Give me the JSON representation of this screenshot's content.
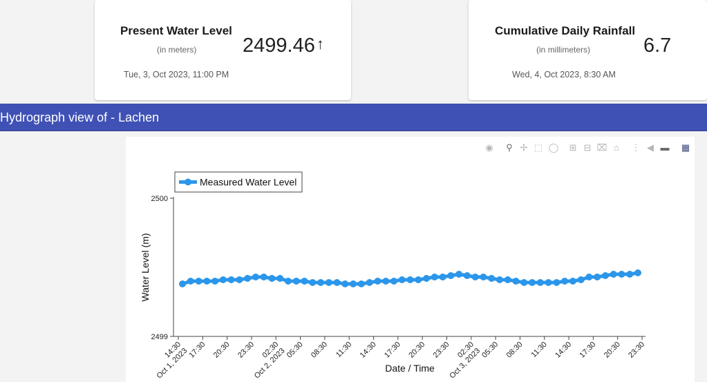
{
  "cards": {
    "water": {
      "title": "Present Water Level",
      "unit": "(in meters)",
      "value": "2499.46",
      "trend_icon": "arrow-up-icon",
      "timestamp": "Tue, 3, Oct 2023, 11:00 PM"
    },
    "rain": {
      "title": "Cumulative Daily Rainfall",
      "unit": "(in millimeters)",
      "value": "6.7",
      "timestamp": "Wed, 4, Oct 2023, 8:30 AM"
    }
  },
  "section": {
    "title": "Hydrograph view of - Lachen",
    "color": "#3f51b5"
  },
  "modebar": {
    "icons": [
      "camera-icon",
      "zoom-icon",
      "pan-icon",
      "box-select-icon",
      "lasso-select-icon",
      "zoom-in-icon",
      "zoom-out-icon",
      "autoscale-icon",
      "reset-axes-icon",
      "spike-lines-icon",
      "hover-closest-icon",
      "hover-compare-icon",
      "plotly-logo-icon"
    ]
  },
  "chart_data": {
    "type": "line",
    "xlabel": "Date / Time",
    "ylabel": "Water Level (m)",
    "ylim": [
      2499,
      2500
    ],
    "yticks": [
      "2499",
      "2500"
    ],
    "xticks": [
      [
        "14:30",
        "Oct 1, 2023"
      ],
      [
        "17:30"
      ],
      [
        "20:30"
      ],
      [
        "23:30"
      ],
      [
        "02:30",
        "Oct 2, 2023"
      ],
      [
        "05:30"
      ],
      [
        "08:30"
      ],
      [
        "11:30"
      ],
      [
        "14:30"
      ],
      [
        "17:30"
      ],
      [
        "20:30"
      ],
      [
        "23:30"
      ],
      [
        "02:30",
        "Oct 3, 2023"
      ],
      [
        "05:30"
      ],
      [
        "08:30"
      ],
      [
        "11:30"
      ],
      [
        "14:30"
      ],
      [
        "17:30"
      ],
      [
        "20:30"
      ],
      [
        "23:30"
      ]
    ],
    "legend": "top-left",
    "grid": false,
    "series": [
      {
        "name": "Measured Water Level",
        "color": "#2b96ea",
        "values": [
          2499.38,
          2499.4,
          2499.4,
          2499.4,
          2499.4,
          2499.41,
          2499.41,
          2499.41,
          2499.42,
          2499.43,
          2499.43,
          2499.42,
          2499.42,
          2499.4,
          2499.4,
          2499.4,
          2499.39,
          2499.39,
          2499.39,
          2499.39,
          2499.38,
          2499.38,
          2499.38,
          2499.39,
          2499.4,
          2499.4,
          2499.4,
          2499.41,
          2499.41,
          2499.41,
          2499.42,
          2499.43,
          2499.43,
          2499.44,
          2499.45,
          2499.44,
          2499.43,
          2499.43,
          2499.42,
          2499.41,
          2499.41,
          2499.4,
          2499.39,
          2499.39,
          2499.39,
          2499.39,
          2499.39,
          2499.4,
          2499.4,
          2499.41,
          2499.43,
          2499.43,
          2499.44,
          2499.45,
          2499.45,
          2499.45,
          2499.46
        ]
      }
    ]
  }
}
